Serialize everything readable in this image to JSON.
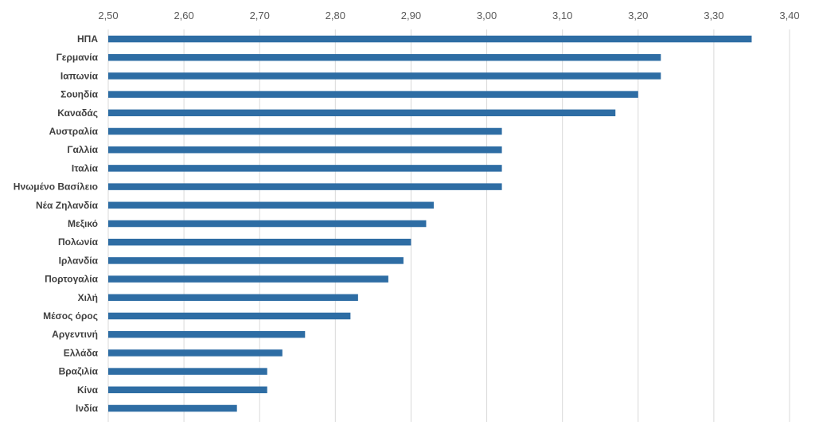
{
  "chart_data": {
    "type": "bar",
    "orientation": "horizontal",
    "title": "",
    "xlabel": "",
    "ylabel": "",
    "xlim": [
      2.5,
      3.4
    ],
    "x_ticks": [
      "2,50",
      "2,60",
      "2,70",
      "2,80",
      "2,90",
      "3,00",
      "3,10",
      "3,20",
      "3,30",
      "3,40"
    ],
    "x_axis_position": "top",
    "grid": true,
    "legend": "none",
    "bar_color": "#2e6da4",
    "categories": [
      "ΗΠΑ",
      "Γερμανία",
      "Ιαπωνία",
      "Σουηδία",
      "Καναδάς",
      "Αυστραλία",
      "Γαλλία",
      "Ιταλία",
      "Ηνωμένο Βασίλειο",
      "Νέα Ζηλανδία",
      "Μεξικό",
      "Πολωνία",
      "Ιρλανδία",
      "Πορτογαλία",
      "Χιλή",
      "Μέσος όρος",
      "Αργεντινή",
      "Ελλάδα",
      "Βραζιλία",
      "Κίνα",
      "Ινδία"
    ],
    "values": [
      3.35,
      3.23,
      3.23,
      3.2,
      3.17,
      3.02,
      3.02,
      3.02,
      3.02,
      2.93,
      2.92,
      2.9,
      2.89,
      2.87,
      2.83,
      2.82,
      2.76,
      2.73,
      2.71,
      2.71,
      2.67
    ]
  }
}
